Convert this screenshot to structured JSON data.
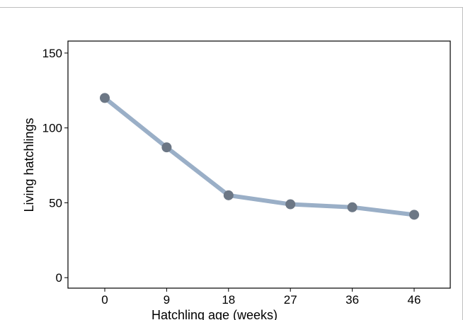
{
  "chart_data": {
    "type": "line",
    "title": "",
    "xlabel": "Hatchling age (weeks)",
    "ylabel": "Living hatchlings",
    "categories": [
      "0",
      "9",
      "18",
      "27",
      "36",
      "46"
    ],
    "series": [
      {
        "values": [
          120,
          87,
          55,
          49,
          47,
          42
        ]
      }
    ],
    "ylim": [
      -7,
      158
    ],
    "yticks": [
      0,
      50,
      100,
      150
    ],
    "grid": false,
    "legend": "none",
    "colors": {
      "line": "#9aafc7",
      "marker": "#6c7785",
      "axis": "#000000"
    }
  }
}
